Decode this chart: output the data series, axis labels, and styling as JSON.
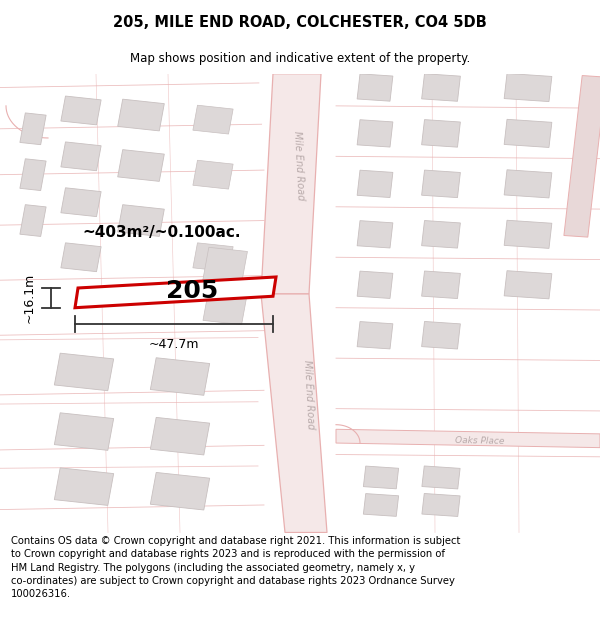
{
  "title": "205, MILE END ROAD, COLCHESTER, CO4 5DB",
  "subtitle": "Map shows position and indicative extent of the property.",
  "footer": "Contains OS data © Crown copyright and database right 2021. This information is subject\nto Crown copyright and database rights 2023 and is reproduced with the permission of\nHM Land Registry. The polygons (including the associated geometry, namely x, y\nco-ordinates) are subject to Crown copyright and database rights 2023 Ordnance Survey\n100026316.",
  "area_label": "~403m²/~0.100ac.",
  "width_label": "~47.7m",
  "height_label": "~16.1m",
  "plot_number": "205",
  "bg_color": "#ffffff",
  "map_bg": "#ffffff",
  "road_line_color": "#e8b0b0",
  "road_fill_color": "#f5e8e8",
  "building_fill": "#ddd8d8",
  "building_edge": "#c8c0c0",
  "plot_edge": "#cc0000",
  "plot_fill": "#ffffff",
  "road_label_color": "#b8aaaa",
  "dim_line_color": "#333333",
  "title_fontsize": 10.5,
  "subtitle_fontsize": 8.5,
  "footer_fontsize": 7.2,
  "area_fontsize": 11,
  "dim_fontsize": 9,
  "plot_num_fontsize": 18
}
